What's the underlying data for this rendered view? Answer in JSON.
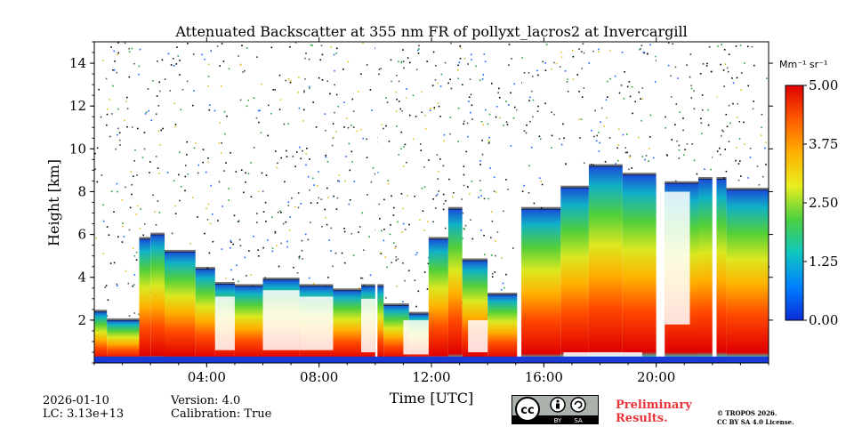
{
  "chart_data": {
    "type": "heatmap",
    "title": "Attenuated Backscatter at 355 nm FR of pollyxt_lacros2 at Invercargill",
    "xlabel": "Time [UTC]",
    "ylabel": "Height [km]",
    "xlim": [
      0,
      24
    ],
    "ylim": [
      0,
      15
    ],
    "x_ticks": [
      {
        "value": 4,
        "label": "04:00"
      },
      {
        "value": 8,
        "label": "08:00"
      },
      {
        "value": 12,
        "label": "12:00"
      },
      {
        "value": 16,
        "label": "16:00"
      },
      {
        "value": 20,
        "label": "20:00"
      }
    ],
    "y_ticks": [
      {
        "value": 2,
        "label": "2"
      },
      {
        "value": 4,
        "label": "4"
      },
      {
        "value": 6,
        "label": "6"
      },
      {
        "value": 8,
        "label": "8"
      },
      {
        "value": 10,
        "label": "10"
      },
      {
        "value": 12,
        "label": "12"
      },
      {
        "value": 14,
        "label": "14"
      }
    ],
    "colorbar": {
      "unit": "Mm⁻¹ sr⁻¹",
      "range": [
        0,
        5
      ],
      "ticks": [
        "0.00",
        "1.25",
        "2.50",
        "3.75",
        "5.00"
      ],
      "colors": [
        "#0a2bd8",
        "#0080ff",
        "#10c6c0",
        "#4cd040",
        "#e8ee20",
        "#ffb000",
        "#ff5a00",
        "#e00000"
      ]
    },
    "segments": [
      {
        "t0": 0.0,
        "t1": 0.45,
        "top": 2.4
      },
      {
        "t0": 0.45,
        "t1": 1.6,
        "top": 2.0
      },
      {
        "t0": 1.6,
        "t1": 2.0,
        "top": 5.8
      },
      {
        "t0": 2.0,
        "t1": 2.5,
        "top": 6.0
      },
      {
        "t0": 2.5,
        "t1": 3.6,
        "top": 5.2
      },
      {
        "t0": 3.6,
        "t1": 4.3,
        "top": 4.4
      },
      {
        "t0": 4.3,
        "t1": 5.0,
        "top": 3.7
      },
      {
        "t0": 5.0,
        "t1": 6.0,
        "top": 3.6
      },
      {
        "t0": 6.0,
        "t1": 7.3,
        "top": 3.9
      },
      {
        "t0": 7.3,
        "t1": 8.5,
        "top": 3.6
      },
      {
        "t0": 8.5,
        "t1": 9.5,
        "top": 3.4
      },
      {
        "t0": 9.5,
        "t1": 10.3,
        "top": 3.6
      },
      {
        "t0": 10.3,
        "t1": 11.2,
        "top": 2.7
      },
      {
        "t0": 11.2,
        "t1": 11.9,
        "top": 2.3
      },
      {
        "t0": 11.9,
        "t1": 12.6,
        "top": 5.8
      },
      {
        "t0": 12.6,
        "t1": 13.1,
        "top": 7.2
      },
      {
        "t0": 13.1,
        "t1": 14.0,
        "top": 4.8
      },
      {
        "t0": 14.0,
        "t1": 15.2,
        "top": 3.2
      },
      {
        "t0": 15.2,
        "t1": 16.6,
        "top": 7.2
      },
      {
        "t0": 16.6,
        "t1": 17.6,
        "top": 8.2
      },
      {
        "t0": 17.6,
        "t1": 18.8,
        "top": 9.2
      },
      {
        "t0": 18.8,
        "t1": 20.0,
        "top": 8.8
      },
      {
        "t0": 20.0,
        "t1": 21.5,
        "top": 8.4
      },
      {
        "t0": 21.5,
        "t1": 22.5,
        "top": 8.6
      },
      {
        "t0": 22.5,
        "t1": 24.0,
        "top": 8.1
      }
    ],
    "gaps": [
      {
        "t0": 10.0,
        "t1": 10.08
      },
      {
        "t0": 15.05,
        "t1": 15.2
      },
      {
        "t0": 20.0,
        "t1": 20.3
      },
      {
        "t0": 22.0,
        "t1": 22.15
      }
    ]
  },
  "footer": {
    "date": "2026-01-10",
    "lc": "LC: 3.13e+13",
    "version": "Version: 4.0",
    "calibration": "Calibration: True",
    "license_badge": {
      "cc": "cc",
      "by": "BY",
      "sa": "SA"
    },
    "preliminary_line1": "Preliminary",
    "preliminary_line2": "Results.",
    "copyright_line1": "© TROPOS 2026.",
    "copyright_line2": "CC BY SA 4.0 License."
  }
}
